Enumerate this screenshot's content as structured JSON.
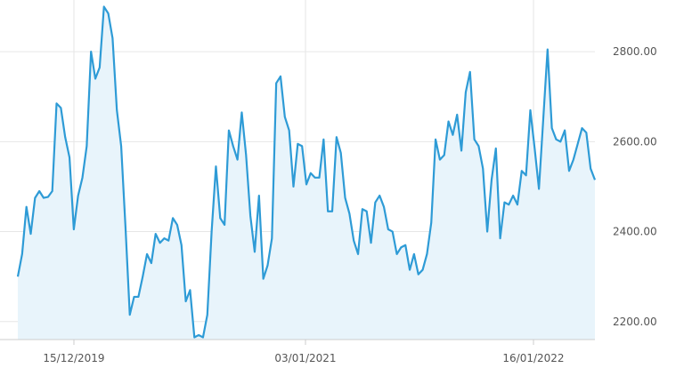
{
  "chart_data": {
    "type": "area",
    "title": "",
    "xlabel": "",
    "ylabel": "",
    "ylim": [
      2160,
      2905
    ],
    "x_ticks": [
      "15/12/2019",
      "03/01/2021",
      "16/01/2022"
    ],
    "y_ticks": [
      "2200.00",
      "2400.00",
      "2600.00",
      "2800.00"
    ],
    "grid": true,
    "line_color": "#2e9bd6",
    "fill_color": "#e8f4fb",
    "series": [
      {
        "values": [
          2300,
          2350,
          2455,
          2395,
          2475,
          2490,
          2475,
          2477,
          2490,
          2685,
          2675,
          2610,
          2565,
          2405,
          2480,
          2520,
          2590,
          2800,
          2740,
          2765,
          2900,
          2885,
          2830,
          2670,
          2590,
          2410,
          2215,
          2255,
          2255,
          2300,
          2350,
          2330,
          2395,
          2375,
          2385,
          2380,
          2430,
          2415,
          2370,
          2245,
          2270,
          2165,
          2170,
          2165,
          2215,
          2400,
          2545,
          2430,
          2415,
          2625,
          2590,
          2560,
          2665,
          2570,
          2435,
          2355,
          2480,
          2295,
          2325,
          2385,
          2730,
          2745,
          2655,
          2625,
          2500,
          2595,
          2590,
          2505,
          2530,
          2520,
          2520,
          2605,
          2445,
          2445,
          2610,
          2575,
          2475,
          2440,
          2380,
          2350,
          2450,
          2445,
          2375,
          2465,
          2480,
          2455,
          2405,
          2400,
          2350,
          2365,
          2370,
          2315,
          2350,
          2305,
          2315,
          2350,
          2420,
          2605,
          2560,
          2570,
          2645,
          2615,
          2660,
          2580,
          2710,
          2755,
          2605,
          2590,
          2540,
          2400,
          2515,
          2585,
          2385,
          2465,
          2460,
          2480,
          2460,
          2535,
          2525,
          2670,
          2585,
          2495,
          2650,
          2805,
          2630,
          2605,
          2600,
          2625,
          2535,
          2560,
          2595,
          2630,
          2620,
          2540,
          2515
        ]
      }
    ]
  }
}
